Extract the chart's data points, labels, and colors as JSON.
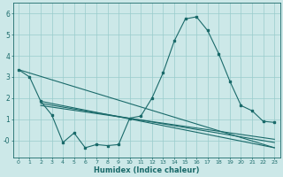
{
  "xlabel": "Humidex (Indice chaleur)",
  "background_color": "#cce8e8",
  "grid_color": "#99cccc",
  "line_color": "#1a6a6a",
  "x_main": [
    0,
    1,
    2,
    3,
    4,
    5,
    6,
    7,
    8,
    9,
    10,
    11,
    12,
    13,
    14,
    15,
    16,
    17,
    18,
    19,
    20,
    21,
    22,
    23
  ],
  "y_main": [
    3.35,
    3.0,
    1.85,
    1.2,
    -0.1,
    0.35,
    -0.35,
    -0.2,
    -0.25,
    -0.2,
    1.05,
    1.15,
    2.0,
    3.2,
    4.7,
    5.75,
    5.85,
    5.2,
    4.1,
    2.8,
    1.65,
    1.4,
    0.9,
    0.85
  ],
  "straight_lines": [
    {
      "x": [
        0,
        23
      ],
      "y": [
        3.35,
        -0.35
      ]
    },
    {
      "x": [
        2,
        23
      ],
      "y": [
        1.85,
        -0.35
      ]
    },
    {
      "x": [
        2,
        23
      ],
      "y": [
        1.75,
        -0.1
      ]
    },
    {
      "x": [
        2,
        23
      ],
      "y": [
        1.65,
        0.05
      ]
    }
  ],
  "ylim": [
    -0.8,
    6.5
  ],
  "yticks": [
    0,
    1,
    2,
    3,
    4,
    5,
    6
  ],
  "ytick_labels": [
    "-0",
    "1",
    "2",
    "3",
    "4",
    "5",
    "6"
  ],
  "xlim": [
    -0.5,
    23.5
  ],
  "xticks": [
    0,
    1,
    2,
    3,
    4,
    5,
    6,
    7,
    8,
    9,
    10,
    11,
    12,
    13,
    14,
    15,
    16,
    17,
    18,
    19,
    20,
    21,
    22,
    23
  ]
}
